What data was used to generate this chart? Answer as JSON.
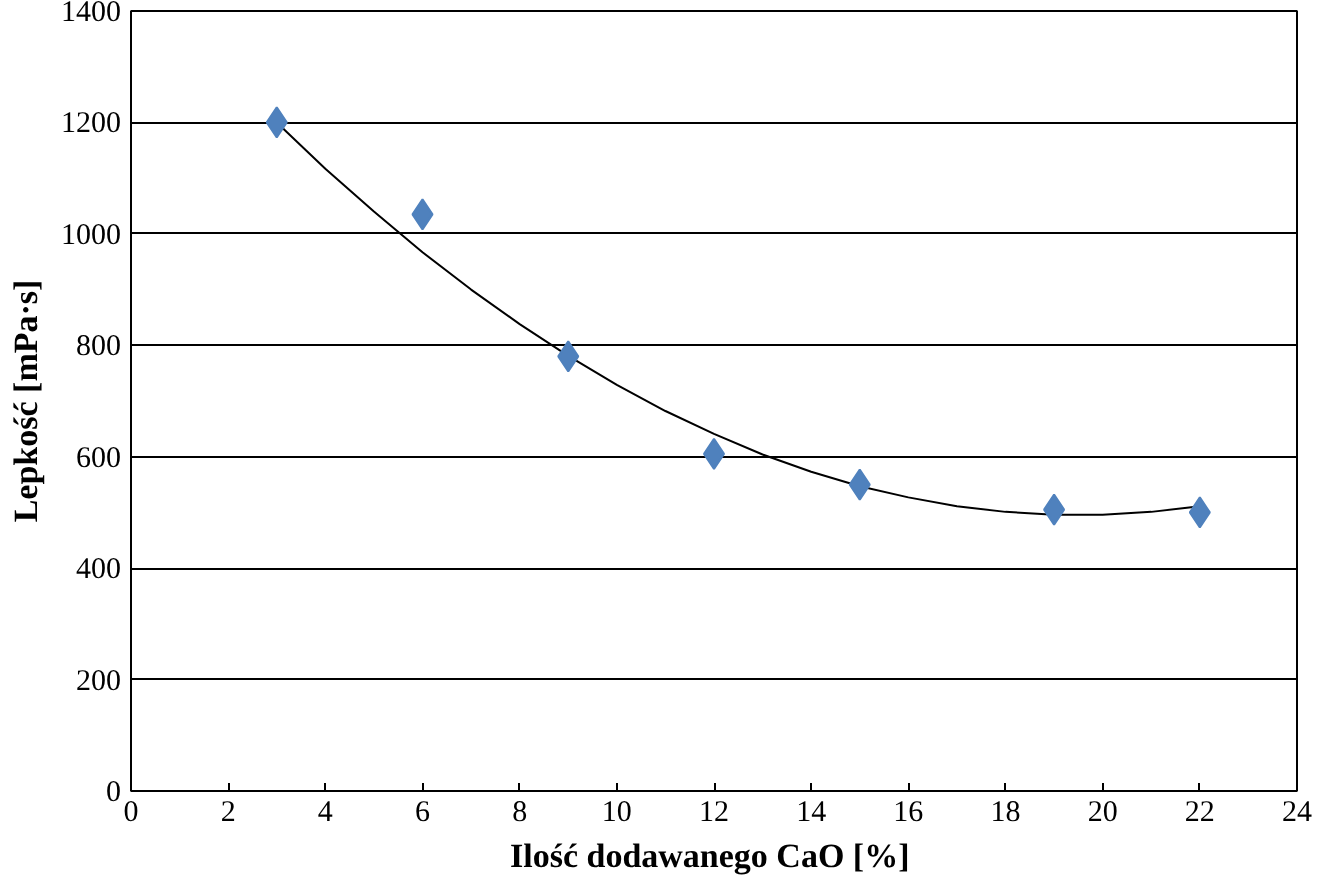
{
  "chart_data": {
    "type": "scatter",
    "xlabel": "Ilość dodawanego CaO  [%]",
    "ylabel": "Lepkość [mPa·s]",
    "xlim": [
      0,
      24
    ],
    "xticks": [
      0,
      2,
      4,
      6,
      8,
      10,
      12,
      14,
      16,
      18,
      20,
      22,
      24
    ],
    "ylim": [
      0,
      1400
    ],
    "yticks": [
      0,
      200,
      400,
      600,
      800,
      1000,
      1200,
      1400
    ],
    "grid": "y",
    "series": [
      {
        "marker": "diamond",
        "color": "#4f81bd",
        "x": [
          3,
          6,
          9,
          12,
          15,
          19,
          22
        ],
        "values": [
          1200,
          1035,
          780,
          605,
          550,
          505,
          500
        ]
      },
      {
        "type": "line",
        "color": "#000000",
        "line_style": "solid",
        "marker": "none",
        "x": [
          3,
          4,
          5,
          6,
          7,
          8,
          9,
          10,
          11,
          12,
          13,
          14,
          15,
          16,
          17,
          18,
          19,
          20,
          21,
          22
        ],
        "values": [
          1200,
          1117,
          1040,
          967,
          900,
          838,
          781,
          729,
          682,
          641,
          604,
          573,
          547,
          527,
          511,
          501,
          496,
          496,
          501,
          511
        ]
      }
    ]
  }
}
